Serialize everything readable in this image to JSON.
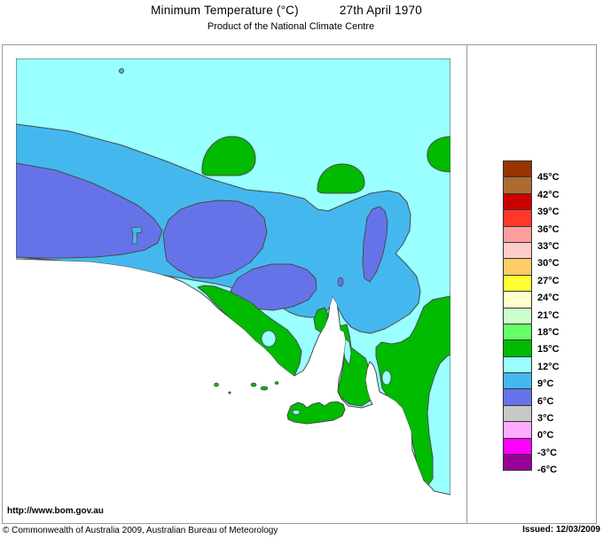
{
  "header": {
    "title": "Minimum Temperature (°C)",
    "date": "27th April 1970",
    "subtitle": "Product of the National Climate Centre"
  },
  "map": {
    "url_label": "http://www.bom.gov.au",
    "colors": {
      "ocean": "#FFFFFF",
      "temp_3_6": "#6673E8",
      "temp_6_9": "#44B8EE",
      "temp_9_12": "#99FFFF",
      "temp_12_15": "#00BB00",
      "outline": "#4A4A4A"
    }
  },
  "legend": {
    "swatch_colors": [
      "#993300",
      "#AD6B32",
      "#CC0000",
      "#FF3828",
      "#FF9C9C",
      "#FFCCCC",
      "#FFCC66",
      "#FFFF33",
      "#FFFFCC",
      "#CCFFCC",
      "#66FF66",
      "#00BB00",
      "#99FFFF",
      "#44B8EE",
      "#6673E8",
      "#C8C8C8",
      "#FFAAFF",
      "#FF00FF",
      "#990099"
    ],
    "tick_labels": [
      "45°C",
      "42°C",
      "39°C",
      "36°C",
      "33°C",
      "30°C",
      "27°C",
      "24°C",
      "21°C",
      "18°C",
      "15°C",
      "12°C",
      "9°C",
      "6°C",
      "3°C",
      "0°C",
      "-3°C",
      "-6°C"
    ]
  },
  "footer": {
    "copyright": "© Commonwealth of Australia 2009, Australian Bureau of Meteorology",
    "issued": "Issued: 12/03/2009"
  },
  "map_data": {
    "type": "contour-temperature-map",
    "legend_scale_c": [
      45,
      42,
      39,
      36,
      33,
      30,
      27,
      24,
      21,
      18,
      15,
      12,
      9,
      6,
      3,
      0,
      -3,
      -6
    ],
    "bands_visible_on_map_c": [
      "3-6",
      "6-9",
      "9-12",
      "12-15"
    ]
  }
}
